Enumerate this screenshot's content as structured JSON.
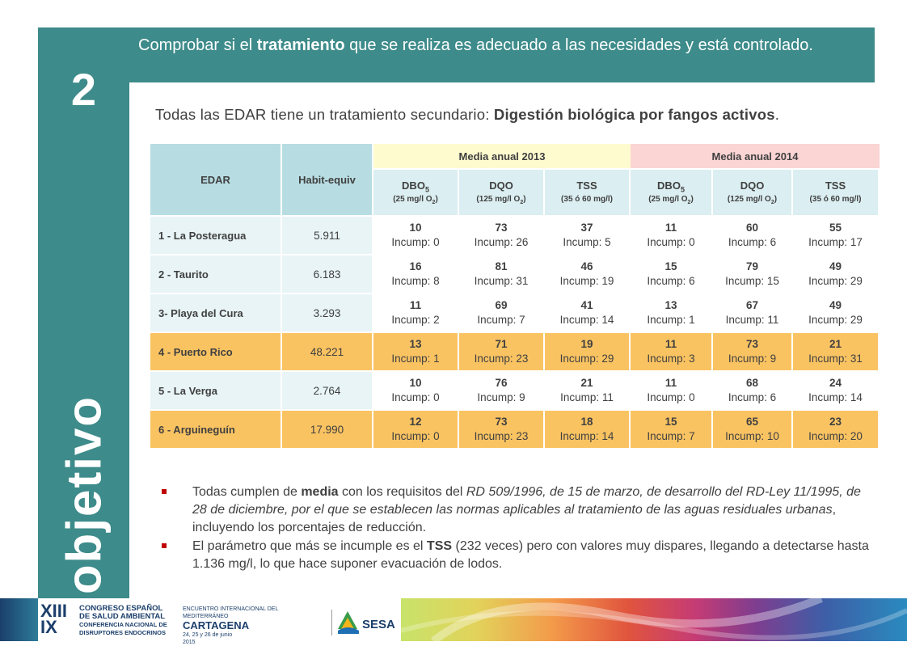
{
  "slide": {
    "number": "2",
    "vertical_word": "objetivo",
    "header": {
      "before": "Comprobar si el ",
      "bold": "tratamiento",
      "after": " que se realiza es adecuado a las necesidades y está controlado."
    },
    "subtitle": {
      "before": "Todas las EDAR tiene un tratamiento secundario: ",
      "bold": "Digestión biológica por fangos activos",
      "after": "."
    }
  },
  "table": {
    "col_edar": "EDAR",
    "col_habit": "Habit-equiv",
    "group_2013": "Media anual 2013",
    "group_2014": "Media anual 2014",
    "subheaders_2013": [
      {
        "main": "DBO",
        "sub": "5",
        "lim": "(25 mg/l O",
        "lim_sub": "2",
        "lim_end": ")"
      },
      {
        "main": "DQO",
        "sub": "",
        "lim": "(125 mg/l O",
        "lim_sub": "2",
        "lim_end": ")"
      },
      {
        "main": "TSS",
        "sub": "",
        "lim": "(35 ó 60 mg/l)",
        "lim_sub": "",
        "lim_end": ""
      }
    ],
    "subheaders_2014": [
      {
        "main": "DBO",
        "sub": "5",
        "lim": "(25 mg/l O",
        "lim_sub": "2",
        "lim_end": ")"
      },
      {
        "main": "DQO",
        "sub": "",
        "lim": "(125 mg/l O",
        "lim_sub": "2",
        "lim_end": ")"
      },
      {
        "main": "TSS",
        "sub": "",
        "lim": "(35 ó 60 mg/l)",
        "lim_sub": "",
        "lim_end": ""
      }
    ],
    "rows": [
      {
        "name": "1 - La Posteragua",
        "habit": "5.911",
        "highlight": false,
        "cells": [
          [
            "10",
            "Incump: 0"
          ],
          [
            "73",
            "Incump: 26"
          ],
          [
            "37",
            "Incump: 5"
          ],
          [
            "11",
            "Incump: 0"
          ],
          [
            "60",
            "Incump: 6"
          ],
          [
            "55",
            "Incump: 17"
          ]
        ]
      },
      {
        "name": "2 - Taurito",
        "habit": "6.183",
        "highlight": false,
        "cells": [
          [
            "16",
            "Incump: 8"
          ],
          [
            "81",
            "Incump: 31"
          ],
          [
            "46",
            "Incump: 19"
          ],
          [
            "15",
            "Incump: 6"
          ],
          [
            "79",
            "Incump: 15"
          ],
          [
            "49",
            "Incump: 29"
          ]
        ]
      },
      {
        "name": "3- Playa del Cura",
        "habit": "3.293",
        "highlight": false,
        "cells": [
          [
            "11",
            "Incump: 2"
          ],
          [
            "69",
            "Incump: 7"
          ],
          [
            "41",
            "Incump: 14"
          ],
          [
            "13",
            "Incump: 1"
          ],
          [
            "67",
            "Incump: 11"
          ],
          [
            "49",
            "Incump: 29"
          ]
        ]
      },
      {
        "name": "4 - Puerto Rico",
        "habit": "48.221",
        "highlight": true,
        "cells": [
          [
            "13",
            "Incump: 1"
          ],
          [
            "71",
            "Incump: 23"
          ],
          [
            "19",
            "Incump: 29"
          ],
          [
            "11",
            "Incump: 3"
          ],
          [
            "73",
            "Incump: 9"
          ],
          [
            "21",
            "Incump: 31"
          ]
        ]
      },
      {
        "name": "5 - La Verga",
        "habit": "2.764",
        "highlight": false,
        "cells": [
          [
            "10",
            "Incump: 0"
          ],
          [
            "76",
            "Incump: 9"
          ],
          [
            "21",
            "Incump: 11"
          ],
          [
            "11",
            "Incump: 0"
          ],
          [
            "68",
            "Incump: 6"
          ],
          [
            "24",
            "Incump: 14"
          ]
        ]
      },
      {
        "name": "6 - Arguineguín",
        "habit": "17.990",
        "highlight": true,
        "cells": [
          [
            "12",
            "Incump: 0"
          ],
          [
            "73",
            "Incump: 23"
          ],
          [
            "18",
            "Incump: 14"
          ],
          [
            "15",
            "Incump: 7"
          ],
          [
            "65",
            "Incump: 10"
          ],
          [
            "23",
            "Incump: 20"
          ]
        ]
      }
    ]
  },
  "bullets": [
    {
      "p1": "Todas cumplen de ",
      "bold": "media",
      "p2": " con los requisitos del ",
      "italic": "RD 509/1996, de 15 de marzo, de desarrollo del RD-Ley 11/1995, de 28 de diciembre, por el que se establecen las normas aplicables al tratamiento de las aguas residuales urbanas",
      "p3": ", incluyendo los porcentajes de reducción."
    },
    {
      "p1": "El parámetro que más se incumple es el ",
      "bold": "TSS",
      "p2": " (232 veces) pero con valores muy dispares, llegando a detectarse hasta 1.136 mg/l, lo que hace suponer evacuación de lodos.",
      "italic": "",
      "p3": ""
    }
  ],
  "footer": {
    "roman1": "XIII",
    "roman2": "IX",
    "congress_line1": "CONGRESO ESPAÑOL",
    "congress_line2": "DE SALUD AMBIENTAL",
    "conf_line1": "CONFERENCIA NACIONAL DE",
    "conf_line2": "DISRUPTORES ENDOCRINOS",
    "event_line": "ENCUENTRO INTERNACIONAL DEL MEDITERRÁNEO",
    "event_city": "CARTAGENA",
    "event_dates": "24, 25 y 26 de junio",
    "event_year": "2015",
    "sesa": "SESA"
  },
  "colors": {
    "teal": "#3d8b8a",
    "header_cell": "#b7dde3",
    "group_2013": "#fefbcf",
    "group_2014": "#fbd4d4",
    "highlight_row": "#fac362",
    "bullet_mark": "#c00000"
  }
}
